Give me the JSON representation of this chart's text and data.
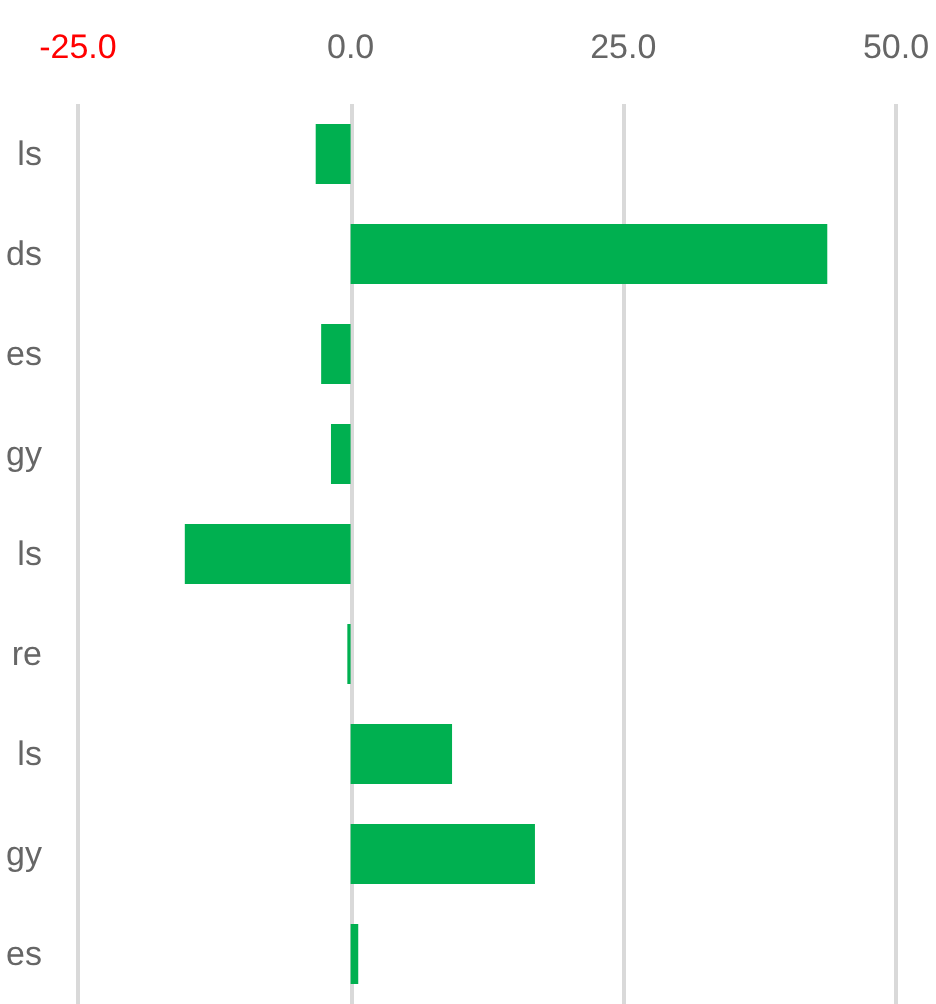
{
  "chart_data": {
    "type": "bar",
    "orientation": "horizontal",
    "categories": [
      "ls",
      "ds",
      "es",
      "gy",
      "ls",
      "re",
      "ls",
      "gy",
      "es"
    ],
    "values": [
      -3.2,
      43.7,
      -2.7,
      -1.8,
      -15.2,
      -0.3,
      9.3,
      16.9,
      0.7
    ],
    "color": "#00b050",
    "xlim": [
      -25,
      50
    ],
    "xticks": [
      {
        "value": -25,
        "label": "-25.0"
      },
      {
        "value": 0,
        "label": "0.0"
      },
      {
        "value": 25,
        "label": "25.0"
      },
      {
        "value": 50,
        "label": "50.0"
      }
    ],
    "grid": "x"
  }
}
